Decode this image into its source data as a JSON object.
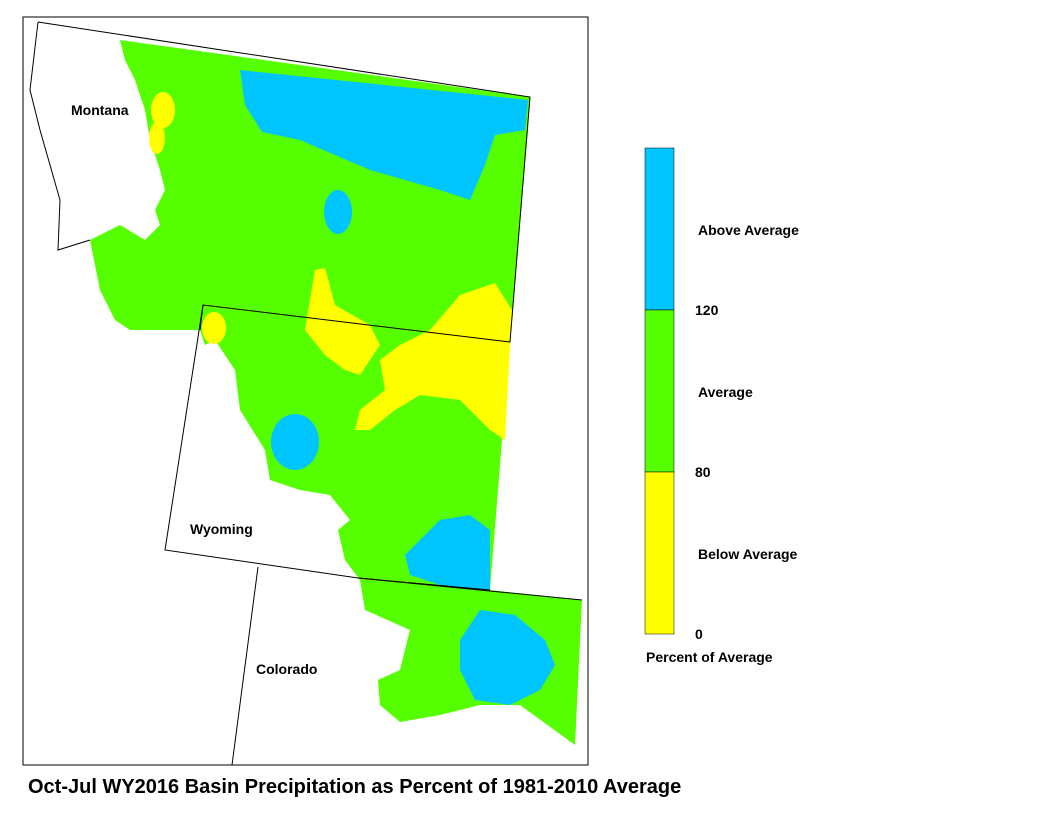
{
  "map": {
    "title": "Oct-Jul WY2016 Basin Precipitation as Percent of 1981-2010 Average",
    "state_labels": [
      "Montana",
      "Wyoming",
      "Colorado"
    ],
    "legend": {
      "title": "Percent of Average",
      "classes": [
        {
          "label": "Above Average",
          "color": "#00c5ff"
        },
        {
          "label": "Average",
          "color": "#55ff00"
        },
        {
          "label": "Below Average",
          "color": "#ffff00"
        }
      ],
      "breaks": [
        120,
        80,
        0
      ]
    }
  }
}
